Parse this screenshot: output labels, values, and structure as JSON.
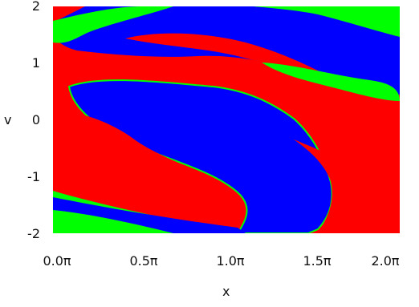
{
  "chart_data": {
    "type": "heatmap",
    "title": "",
    "xlabel": "x",
    "ylabel": "v",
    "xlim": [
      0,
      2
    ],
    "ylim": [
      -2,
      2
    ],
    "x_ticks": [
      "0.0π",
      "0.5π",
      "1.0π",
      "1.5π",
      "2.0π"
    ],
    "y_ticks": [
      "2",
      "1",
      "0",
      "-1",
      "-2"
    ],
    "grid": false,
    "legend": "none",
    "categories": [
      "red",
      "green",
      "blue"
    ],
    "colors": {
      "red": "#ff0000",
      "green": "#00ff00",
      "blue": "#0000ff"
    }
  }
}
